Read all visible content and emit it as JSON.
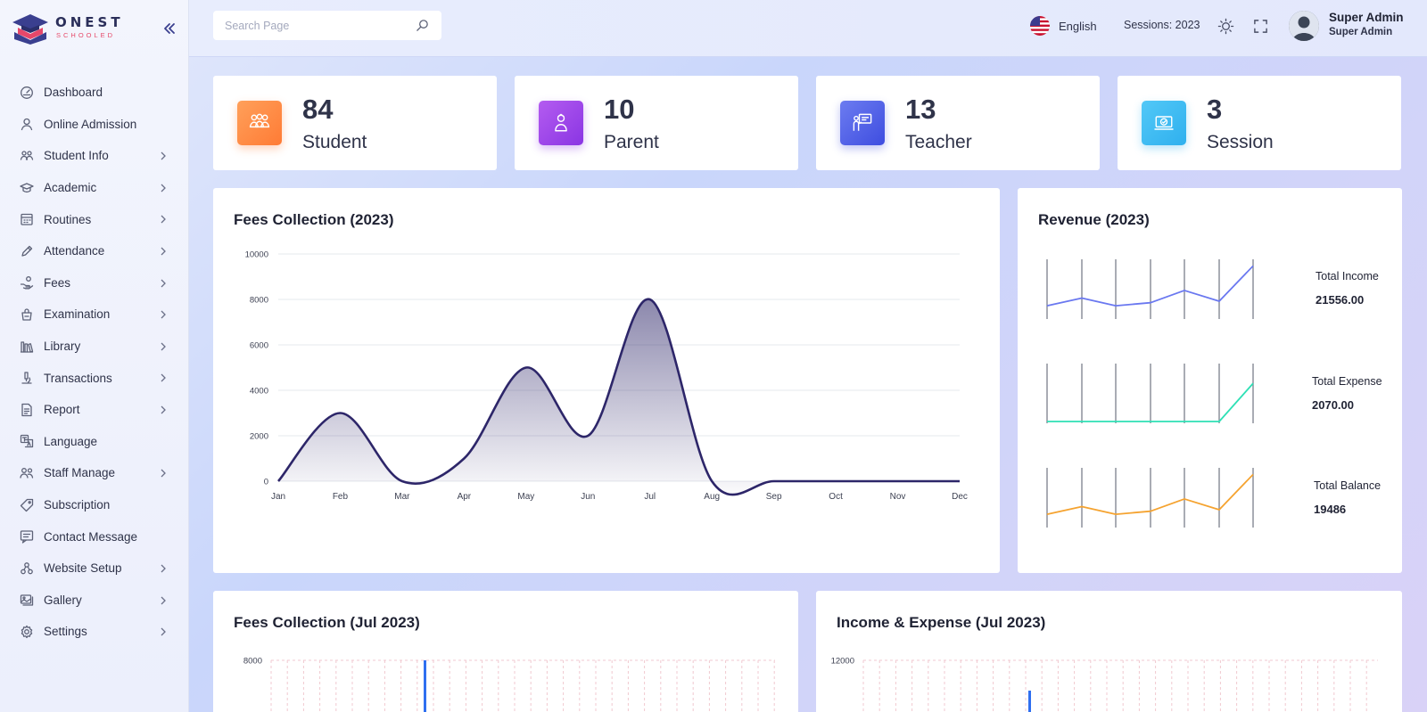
{
  "app": {
    "logo_name": "ONEST",
    "logo_sub": "SCHOOLED"
  },
  "search": {
    "placeholder": "Search Page"
  },
  "header": {
    "language": "English",
    "sessions": "Sessions: 2023",
    "user_name": "Super Admin",
    "user_role": "Super Admin"
  },
  "sidebar": {
    "items": [
      {
        "label": "Dashboard",
        "icon": "dashboard-icon",
        "chevron": false
      },
      {
        "label": "Online Admission",
        "icon": "user-icon",
        "chevron": false
      },
      {
        "label": "Student Info",
        "icon": "students-icon",
        "chevron": true
      },
      {
        "label": "Academic",
        "icon": "graduation-cap-icon",
        "chevron": true
      },
      {
        "label": "Routines",
        "icon": "calendar-icon",
        "chevron": true
      },
      {
        "label": "Attendance",
        "icon": "pen-icon",
        "chevron": true
      },
      {
        "label": "Fees",
        "icon": "hand-coin-icon",
        "chevron": true
      },
      {
        "label": "Examination",
        "icon": "exam-icon",
        "chevron": true
      },
      {
        "label": "Library",
        "icon": "books-icon",
        "chevron": true
      },
      {
        "label": "Transactions",
        "icon": "microscope-icon",
        "chevron": true
      },
      {
        "label": "Report",
        "icon": "report-icon",
        "chevron": true
      },
      {
        "label": "Language",
        "icon": "translate-icon",
        "chevron": false
      },
      {
        "label": "Staff Manage",
        "icon": "staff-icon",
        "chevron": true
      },
      {
        "label": "Subscription",
        "icon": "tag-icon",
        "chevron": false
      },
      {
        "label": "Contact Message",
        "icon": "message-icon",
        "chevron": false
      },
      {
        "label": "Website Setup",
        "icon": "website-icon",
        "chevron": true
      },
      {
        "label": "Gallery",
        "icon": "gallery-icon",
        "chevron": true
      },
      {
        "label": "Settings",
        "icon": "settings-icon",
        "chevron": true
      }
    ]
  },
  "stats": [
    {
      "value": "84",
      "label": "Student",
      "icon": "students-icon",
      "color_from": "#ffa05a",
      "color_to": "#ff7b35"
    },
    {
      "value": "10",
      "label": "Parent",
      "icon": "parent-icon",
      "color_from": "#b45cf0",
      "color_to": "#8a35e3"
    },
    {
      "value": "13",
      "label": "Teacher",
      "icon": "teacher-icon",
      "color_from": "#6c7cf0",
      "color_to": "#3e4de0"
    },
    {
      "value": "3",
      "label": "Session",
      "icon": "session-icon",
      "color_from": "#52c8f7",
      "color_to": "#2fb0ee"
    }
  ],
  "fees_chart": {
    "title": "Fees Collection (2023)",
    "chart_data": {
      "type": "area",
      "categories": [
        "Jan",
        "Feb",
        "Mar",
        "Apr",
        "May",
        "Jun",
        "Jul",
        "Aug",
        "Sep",
        "Oct",
        "Nov",
        "Dec"
      ],
      "values": [
        0,
        3000,
        0,
        1000,
        5000,
        2000,
        8000,
        0,
        0,
        0,
        0,
        0
      ],
      "ylim": [
        0,
        10000
      ],
      "yticks": [
        0,
        2000,
        4000,
        6000,
        8000,
        10000
      ],
      "grid": true,
      "line_color": "#2d2669"
    }
  },
  "revenue": {
    "title": "Revenue (2023)",
    "items": [
      {
        "label": "Total Income",
        "value": "21556.00",
        "color": "#6a78f0",
        "points": [
          2,
          4.5,
          2,
          3,
          7,
          3.5,
          15
        ]
      },
      {
        "label": "Total Expense",
        "value": "2070.00",
        "color": "#2ee0b5",
        "points": [
          0,
          0,
          0,
          0,
          0,
          0,
          12
        ]
      },
      {
        "label": "Total Balance",
        "value": "19486",
        "color": "#f5a330",
        "points": [
          2,
          4.5,
          2,
          3,
          7,
          3.5,
          15
        ]
      }
    ]
  },
  "fees_month": {
    "title": "Fees Collection (Jul 2023)",
    "chart_data": {
      "type": "bar",
      "ytick_top": 8000,
      "bar_color": "#2f6ff0"
    }
  },
  "income_expense": {
    "title": "Income & Expense (Jul 2023)",
    "chart_data": {
      "type": "bar",
      "ytick_top": 12000,
      "bar_color": "#2f6ff0"
    }
  }
}
